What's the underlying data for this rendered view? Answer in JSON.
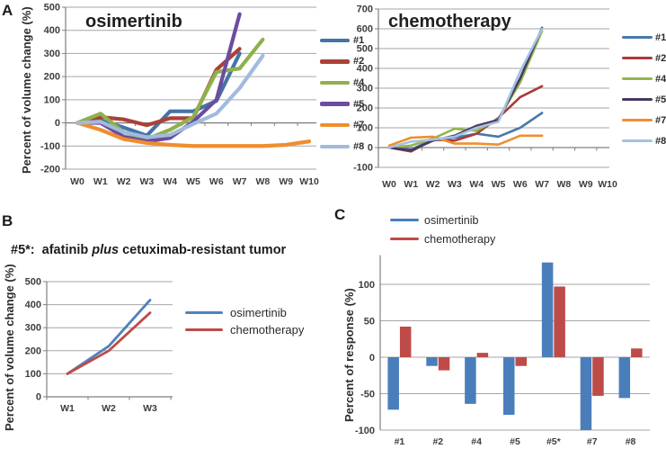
{
  "panels": {
    "A": {
      "label": "A"
    },
    "B": {
      "label": "B",
      "title_prefix": "#5*:  afatinib ",
      "title_italic": "plus",
      "title_suffix": " cetuximab-resistant tumor"
    },
    "C": {
      "label": "C"
    }
  },
  "colors": {
    "grid": "#a6a6a6",
    "axis": "#808080",
    "zero_axis": "#7f7f7f",
    "tick_text": "#3d3d3d",
    "blue": "#4F81BD",
    "red": "#BE4B48"
  },
  "chart_data": [
    {
      "id": "a_left",
      "type": "line",
      "title": "osimertinib",
      "ylabel": "Percent of volume change (%)",
      "xlabel": "",
      "x": [
        "W0",
        "W1",
        "W2",
        "W3",
        "W4",
        "W5",
        "W6",
        "W7",
        "W8",
        "W9",
        "W10"
      ],
      "ylim": [
        -200,
        500
      ],
      "ytick_step": 100,
      "grid": true,
      "legend_position": "right-of-chart",
      "series": [
        {
          "name": "#1",
          "color": "#4473A6",
          "values": [
            0,
            10,
            -20,
            -55,
            50,
            50,
            95,
            300,
            null,
            null,
            null
          ]
        },
        {
          "name": "#2",
          "color": "#AC4137",
          "values": [
            0,
            25,
            15,
            -10,
            20,
            20,
            230,
            320,
            null,
            null,
            null
          ]
        },
        {
          "name": "#4",
          "color": "#8EB14C",
          "values": [
            0,
            40,
            -40,
            -70,
            -30,
            25,
            220,
            235,
            360,
            null,
            null
          ]
        },
        {
          "name": "#5",
          "color": "#6C4C9F",
          "values": [
            0,
            0,
            -60,
            -80,
            -65,
            5,
            100,
            470,
            null,
            null,
            null
          ]
        },
        {
          "name": "#7",
          "color": "#EF8E2E",
          "values": [
            0,
            -30,
            -70,
            -87,
            -95,
            -100,
            -100,
            -100,
            -100,
            -95,
            -80
          ]
        },
        {
          "name": "#8",
          "color": "#A0BBDC",
          "values": [
            0,
            5,
            -40,
            -62,
            -52,
            -5,
            40,
            150,
            290,
            null,
            null
          ]
        }
      ]
    },
    {
      "id": "a_right",
      "type": "line",
      "title": "chemotherapy",
      "ylabel": "",
      "xlabel": "",
      "x": [
        "W0",
        "W1",
        "W2",
        "W3",
        "W4",
        "W5",
        "W6",
        "W7",
        "W8",
        "W9",
        "W10"
      ],
      "ylim": [
        -100,
        700
      ],
      "ytick_step": 100,
      "grid": true,
      "legend_position": "right-of-chart",
      "series": [
        {
          "name": "#1",
          "color": "#4878AC",
          "values": [
            0,
            -10,
            40,
            50,
            70,
            55,
            100,
            175,
            null,
            null,
            null
          ]
        },
        {
          "name": "#2",
          "color": "#A93B38",
          "values": [
            0,
            -20,
            40,
            35,
            70,
            150,
            255,
            310,
            null,
            null,
            null
          ]
        },
        {
          "name": "#4",
          "color": "#93B44D",
          "values": [
            0,
            10,
            45,
            95,
            85,
            145,
            330,
            590,
            null,
            null,
            null
          ]
        },
        {
          "name": "#5",
          "color": "#473A60",
          "values": [
            0,
            -15,
            35,
            60,
            110,
            140,
            350,
            605,
            null,
            null,
            null
          ]
        },
        {
          "name": "#7",
          "color": "#EF8E2E",
          "values": [
            10,
            50,
            55,
            20,
            20,
            15,
            60,
            60,
            null,
            null,
            null
          ]
        },
        {
          "name": "#8",
          "color": "#A4C2E3",
          "values": [
            0,
            30,
            40,
            55,
            100,
            130,
            385,
            600,
            null,
            null,
            null
          ]
        }
      ]
    },
    {
      "id": "b",
      "type": "line",
      "title": "",
      "ylabel": "Percent of volume change (%)",
      "xlabel": "",
      "x": [
        "W1",
        "W2",
        "W3"
      ],
      "ylim": [
        0,
        500
      ],
      "ytick_step": 100,
      "grid": true,
      "legend_position": "right-of-chart",
      "series": [
        {
          "name": "osimertinib",
          "color": "#4F81BD",
          "values": [
            100,
            220,
            420
          ]
        },
        {
          "name": "chemotherapy",
          "color": "#BE4B48",
          "values": [
            100,
            200,
            365
          ]
        }
      ]
    },
    {
      "id": "c",
      "type": "bar",
      "title": "",
      "ylabel": "Percent of response (%)",
      "xlabel": "",
      "categories": [
        "#1",
        "#2",
        "#4",
        "#5",
        "#5*",
        "#7",
        "#8"
      ],
      "ylim": [
        -100,
        140
      ],
      "ytick_step": 50,
      "grid": true,
      "legend_position": "top",
      "series": [
        {
          "name": "osimertinib",
          "color": "#4A7EBB",
          "values": [
            -72,
            -12,
            -64,
            -79,
            130,
            -100,
            -56
          ]
        },
        {
          "name": "chemotherapy",
          "color": "#BE4B48",
          "values": [
            42,
            -18,
            6,
            -12,
            97,
            -53,
            12
          ]
        }
      ]
    }
  ]
}
